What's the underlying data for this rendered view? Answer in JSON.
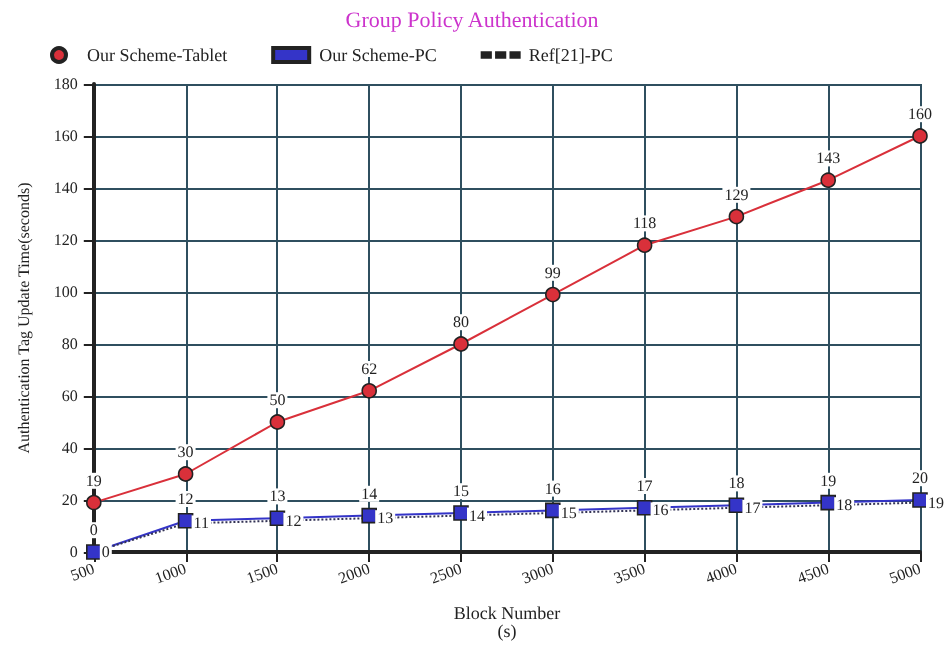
{
  "chart_data": {
    "type": "line",
    "title": "Group Policy Authentication",
    "xlabel": "Block Number\n(s)",
    "ylabel": "Authentication Tag Update Time(seconds)",
    "x": [
      500,
      1000,
      1500,
      2000,
      2500,
      3000,
      3500,
      4000,
      4500,
      5000
    ],
    "xlim": [
      500,
      5000
    ],
    "xticks": [
      500,
      1000,
      1500,
      2000,
      2500,
      3000,
      3500,
      4000,
      4500,
      5000
    ],
    "ylim": [
      0,
      180
    ],
    "yticks": [
      0,
      20,
      40,
      60,
      80,
      100,
      120,
      140,
      160,
      180
    ],
    "series": [
      {
        "name": "Our Scheme-Tablet",
        "color": "#d9303a",
        "marker": "circle",
        "line_style": "solid",
        "values": [
          19,
          30,
          50,
          62,
          80,
          99,
          118,
          129,
          143,
          160
        ]
      },
      {
        "name": "Our Scheme-PC",
        "color": "#3434c8",
        "marker": "square",
        "line_style": "solid",
        "values": [
          0,
          12,
          13,
          14,
          15,
          16,
          17,
          18,
          19,
          20
        ]
      },
      {
        "name": "Ref[21]-PC",
        "color": "#333355",
        "marker": "none",
        "line_style": "dotted",
        "values": [
          0,
          11,
          12,
          13,
          14,
          15,
          16,
          17,
          18,
          19
        ]
      }
    ],
    "data_labels": true,
    "grid": true,
    "legend": "top left"
  }
}
